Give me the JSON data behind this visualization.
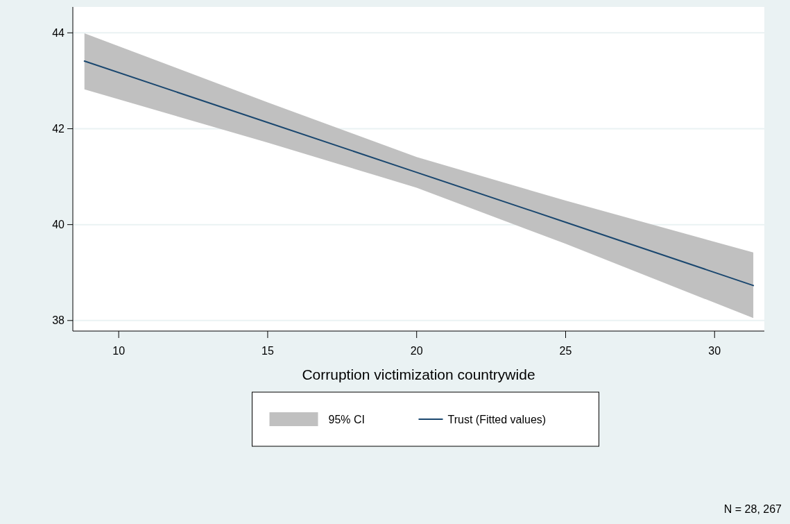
{
  "chart_data": {
    "type": "line",
    "xlabel": "Corruption victimization countrywide",
    "x": [
      8.85,
      15,
      20,
      25,
      31.3
    ],
    "xlim": [
      8.46,
      31.67
    ],
    "xticks": [
      10,
      15,
      20,
      25,
      30
    ],
    "ylim": [
      37.78,
      44.54
    ],
    "yticks": [
      38,
      40,
      42,
      44
    ],
    "grid": "y",
    "legend": "bottom",
    "annotations": [
      "95% CI",
      "N = 28, 267"
    ],
    "series": [
      {
        "name": "Trust (Fitted values)",
        "color": "#1a476f",
        "values": [
          43.41,
          42.13,
          41.09,
          40.05,
          38.73
        ],
        "upper": [
          43.99,
          42.55,
          41.41,
          40.5,
          39.42
        ],
        "lower": [
          42.82,
          41.71,
          40.77,
          39.6,
          38.05
        ]
      }
    ]
  }
}
